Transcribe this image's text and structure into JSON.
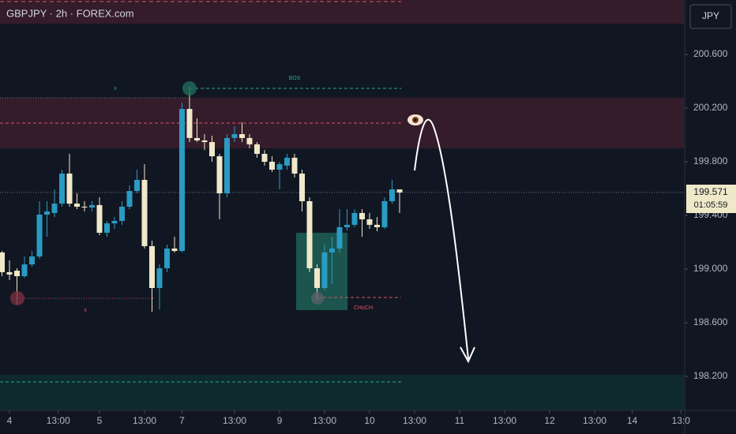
{
  "chart_data": {
    "type": "candlestick",
    "title": "GBPJPY · 2h · FOREX.com",
    "currency": "JPY",
    "up_color": "#2a9bc2",
    "down_color": "#efe9c9",
    "xlim": [
      -1.263,
      89.895
    ],
    "ylim": [
      197.947,
      201.006
    ],
    "xticks": [
      {
        "value": 0,
        "label": "4"
      },
      {
        "value": 6.5,
        "label": "13:00"
      },
      {
        "value": 12,
        "label": "5"
      },
      {
        "value": 18,
        "label": "13:00"
      },
      {
        "value": 23,
        "label": "7"
      },
      {
        "value": 30,
        "label": "13:00"
      },
      {
        "value": 36,
        "label": "9"
      },
      {
        "value": 42,
        "label": "13:00"
      },
      {
        "value": 48,
        "label": "10"
      },
      {
        "value": 54,
        "label": "13:00"
      },
      {
        "value": 60,
        "label": "11"
      },
      {
        "value": 66,
        "label": "13:00"
      },
      {
        "value": 72,
        "label": "12"
      },
      {
        "value": 78,
        "label": "13:00"
      },
      {
        "value": 83,
        "label": "14"
      },
      {
        "value": 89.5,
        "label": "13:0"
      }
    ],
    "yticks": [
      {
        "value": 198.2,
        "label": "198.200"
      },
      {
        "value": 198.6,
        "label": "198.600"
      },
      {
        "value": 199,
        "label": "199.000"
      },
      {
        "value": 199.4,
        "label": "199.400"
      },
      {
        "value": 199.8,
        "label": "199.800"
      },
      {
        "value": 200.2,
        "label": "200.200"
      },
      {
        "value": 200.6,
        "label": "200.600"
      }
    ],
    "x": [
      -1,
      0,
      1,
      2,
      3,
      4,
      5,
      6,
      7,
      8,
      9,
      10,
      11,
      12,
      13,
      14,
      15,
      16,
      17,
      18,
      19,
      20,
      21,
      22,
      23,
      24,
      25,
      26,
      27,
      28,
      29,
      30,
      31,
      32,
      33,
      34,
      35,
      36,
      37,
      38,
      39,
      40,
      41,
      42,
      43,
      44,
      45,
      46,
      47,
      48,
      49,
      50,
      51,
      52
    ],
    "open": [
      199.124,
      198.977,
      198.988,
      198.947,
      199.035,
      199.094,
      199.406,
      199.418,
      199.488,
      199.712,
      199.488,
      199.465,
      199.459,
      199.477,
      199.271,
      199.341,
      199.359,
      199.465,
      199.582,
      199.665,
      199.171,
      198.859,
      199.006,
      199.153,
      199.135,
      200.194,
      199.977,
      199.959,
      199.947,
      199.841,
      199.565,
      199.977,
      200.006,
      199.977,
      199.93,
      199.859,
      199.8,
      199.741,
      199.771,
      199.83,
      199.712,
      199.506,
      199.006,
      198.859,
      199.124,
      199.153,
      199.312,
      199.33,
      199.418,
      199.371,
      199.33,
      199.312,
      199.506,
      199.594
    ],
    "high": [
      199.135,
      199.065,
      199.006,
      199.094,
      199.135,
      199.506,
      199.506,
      199.594,
      199.741,
      199.859,
      199.565,
      199.506,
      199.506,
      199.535,
      199.359,
      199.388,
      199.506,
      199.624,
      199.741,
      199.782,
      199.212,
      199.035,
      199.182,
      199.241,
      200.241,
      200.359,
      200.124,
      200.006,
      199.994,
      199.859,
      200.006,
      200.065,
      200.094,
      200.006,
      199.947,
      199.888,
      199.841,
      199.8,
      199.859,
      199.859,
      199.741,
      199.535,
      199.035,
      199.182,
      199.241,
      199.447,
      199.447,
      199.447,
      199.447,
      199.418,
      199.388,
      199.535,
      199.665,
      199.582
    ],
    "low": [
      198.947,
      198.918,
      198.741,
      198.935,
      199.018,
      199.077,
      199.241,
      199.388,
      199.465,
      199.465,
      199.447,
      199.43,
      199.43,
      199.253,
      199.241,
      199.3,
      199.33,
      199.447,
      199.565,
      199.153,
      198.682,
      198.7,
      198.977,
      199.124,
      199.124,
      199.947,
      199.947,
      199.888,
      199.8,
      199.371,
      199.535,
      199.947,
      199.947,
      199.9,
      199.83,
      199.771,
      199.724,
      199.594,
      199.741,
      199.682,
      199.43,
      198.977,
      198.771,
      198.841,
      198.888,
      199.124,
      199.288,
      199.312,
      199.241,
      199.3,
      199.282,
      199.3,
      199.488,
      199.418
    ],
    "close": [
      198.977,
      198.959,
      198.947,
      199.035,
      199.094,
      199.406,
      199.43,
      199.488,
      199.712,
      199.488,
      199.465,
      199.459,
      199.477,
      199.271,
      199.341,
      199.359,
      199.465,
      199.582,
      199.665,
      199.171,
      198.859,
      199.006,
      199.153,
      199.135,
      200.194,
      199.977,
      199.959,
      199.947,
      199.841,
      199.565,
      199.977,
      200.006,
      199.977,
      199.93,
      199.859,
      199.8,
      199.741,
      199.782,
      199.83,
      199.712,
      199.506,
      199.006,
      198.859,
      199.124,
      199.153,
      199.312,
      199.33,
      199.418,
      199.371,
      199.33,
      199.312,
      199.506,
      199.594,
      199.571
    ],
    "zones": [
      {
        "from": 200.829,
        "to": 201.006,
        "color": "#3b1d2b"
      },
      {
        "from": 199.9,
        "to": 200.277,
        "color": "#3b1d2b"
      },
      {
        "from": 197.947,
        "to": 198.212,
        "color": "#0f2e30"
      },
      {
        "from": 198.694,
        "to": 199.271,
        "color": "#1f6b5c"
      }
    ],
    "levels": [
      {
        "value": 200.994,
        "color": "#e2506a"
      },
      {
        "value": 200.347,
        "color": "#26a69a"
      },
      {
        "value": 200.277,
        "color": "#6b7280"
      },
      {
        "value": 200.088,
        "color": "#e2506a"
      },
      {
        "value": 198.782,
        "color": "#b8485c"
      },
      {
        "value": 198.788,
        "color": "#e2506a"
      },
      {
        "value": 198.159,
        "color": "#26a69a"
      }
    ],
    "annotations": [
      "BOS",
      "CHoCH",
      "x",
      "x"
    ],
    "last_price": 199.571,
    "countdown": "01:05:59"
  }
}
